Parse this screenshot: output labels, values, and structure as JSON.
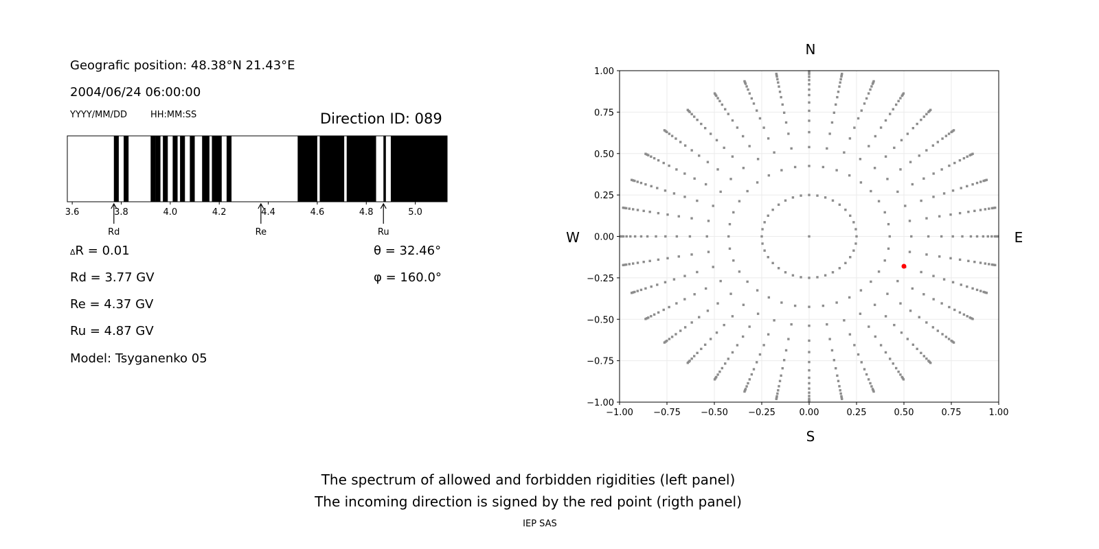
{
  "info": {
    "geo_position": "Geografic position: 48.38°N 21.43°E",
    "datetime": "2004/06/24 06:00:00",
    "date_format": "YYYY/MM/DD",
    "time_format": "HH:MM:SS",
    "direction_id": "Direction ID: 089",
    "delta_r_symbol": "Δ",
    "delta_r": "R = 0.01",
    "rd": "Rd = 3.77 GV",
    "re": "Re = 4.37 GV",
    "ru": "Ru = 4.87 GV",
    "model": "Model: Tsyganenko 05",
    "theta": "θ = 32.46°",
    "phi": "φ = 160.0°"
  },
  "footer": {
    "line1": "The spectrum of allowed and forbidden rigidities (left panel)",
    "line2": "The incoming direction is signed by the red point (rigth panel)",
    "credit": "IEP SAS"
  },
  "chart_data": [
    {
      "type": "spectrum",
      "xlim": [
        3.58,
        5.13
      ],
      "xticks": [
        "3.6",
        "3.8",
        "4.0",
        "4.2",
        "4.4",
        "4.6",
        "4.8",
        "5.0"
      ],
      "xtick_values": [
        3.6,
        3.8,
        4.0,
        4.2,
        4.4,
        4.6,
        4.8,
        5.0
      ],
      "black_bands": [
        [
          3.77,
          3.79
        ],
        [
          3.81,
          3.83
        ],
        [
          3.92,
          3.94
        ],
        [
          3.94,
          3.96
        ],
        [
          3.97,
          3.99
        ],
        [
          4.01,
          4.03
        ],
        [
          4.04,
          4.06
        ],
        [
          4.08,
          4.1
        ],
        [
          4.13,
          4.16
        ],
        [
          4.17,
          4.21
        ],
        [
          4.23,
          4.25
        ],
        [
          4.52,
          4.6
        ],
        [
          4.61,
          4.71
        ],
        [
          4.72,
          4.84
        ],
        [
          4.87,
          4.88
        ],
        [
          4.9,
          5.13
        ]
      ],
      "markers": [
        {
          "label": "Rd",
          "value": 3.77
        },
        {
          "label": "Re",
          "value": 4.37
        },
        {
          "label": "Ru",
          "value": 4.87
        }
      ],
      "band_color": "#000000"
    },
    {
      "type": "scatter",
      "xlim": [
        -1,
        1
      ],
      "ylim": [
        -1,
        1
      ],
      "grid": true,
      "ticks": [
        "−1.00",
        "−0.75",
        "−0.50",
        "−0.25",
        "0.00",
        "0.25",
        "0.50",
        "0.75",
        "1.00"
      ],
      "tick_values": [
        -1,
        -0.75,
        -0.5,
        -0.25,
        0,
        0.25,
        0.5,
        0.75,
        1
      ],
      "compass": {
        "n": "N",
        "s": "S",
        "w": "W",
        "e": "E"
      },
      "ray_count": 36,
      "radial_levels": [
        0.25,
        0.425,
        0.539,
        0.629,
        0.698,
        0.758,
        0.808,
        0.853,
        0.886,
        0.918,
        0.943,
        0.963,
        0.98,
        0.988,
        0.996
      ],
      "center_point": [
        0,
        0
      ],
      "grid_point_color": "#8c8c8c",
      "highlight_point": {
        "x": 0.5,
        "y": -0.18,
        "color": "#ff0000"
      }
    }
  ]
}
